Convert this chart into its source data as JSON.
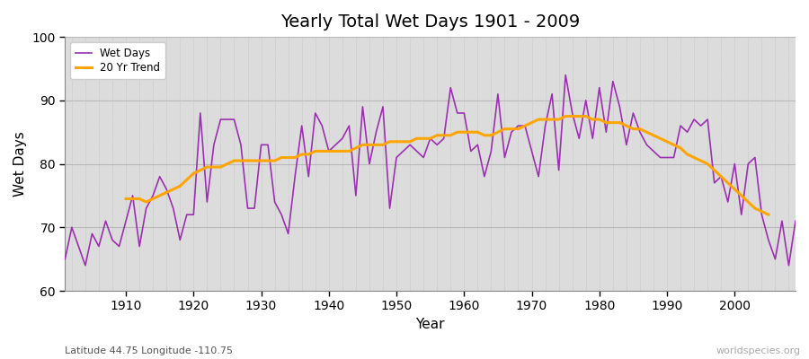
{
  "title": "Yearly Total Wet Days 1901 - 2009",
  "xlabel": "Year",
  "ylabel": "Wet Days",
  "subtitle": "Latitude 44.75 Longitude -110.75",
  "watermark": "worldspecies.org",
  "fig_bg_color": "#ffffff",
  "plot_bg_color": "#dcdcdc",
  "ylim": [
    60,
    100
  ],
  "xlim": [
    1901,
    2009
  ],
  "wet_days_color": "#9b30b0",
  "trend_color": "#FFA500",
  "years": [
    1901,
    1902,
    1903,
    1904,
    1905,
    1906,
    1907,
    1908,
    1909,
    1910,
    1911,
    1912,
    1913,
    1914,
    1915,
    1916,
    1917,
    1918,
    1919,
    1920,
    1921,
    1922,
    1923,
    1924,
    1925,
    1926,
    1927,
    1928,
    1929,
    1930,
    1931,
    1932,
    1933,
    1934,
    1935,
    1936,
    1937,
    1938,
    1939,
    1940,
    1941,
    1942,
    1943,
    1944,
    1945,
    1946,
    1947,
    1948,
    1949,
    1950,
    1951,
    1952,
    1953,
    1954,
    1955,
    1956,
    1957,
    1958,
    1959,
    1960,
    1961,
    1962,
    1963,
    1964,
    1965,
    1966,
    1967,
    1968,
    1969,
    1970,
    1971,
    1972,
    1973,
    1974,
    1975,
    1976,
    1977,
    1978,
    1979,
    1980,
    1981,
    1982,
    1983,
    1984,
    1985,
    1986,
    1987,
    1988,
    1989,
    1990,
    1991,
    1992,
    1993,
    1994,
    1995,
    1996,
    1997,
    1998,
    1999,
    2000,
    2001,
    2002,
    2003,
    2004,
    2005,
    2006,
    2007,
    2008,
    2009
  ],
  "wet_days": [
    65,
    70,
    67,
    64,
    69,
    67,
    71,
    68,
    67,
    71,
    75,
    67,
    73,
    75,
    78,
    76,
    73,
    68,
    72,
    72,
    88,
    74,
    83,
    87,
    87,
    87,
    83,
    73,
    73,
    83,
    83,
    74,
    72,
    69,
    78,
    86,
    78,
    88,
    86,
    82,
    83,
    84,
    86,
    75,
    89,
    80,
    85,
    89,
    73,
    81,
    82,
    83,
    82,
    81,
    84,
    83,
    84,
    92,
    88,
    88,
    82,
    83,
    78,
    82,
    91,
    81,
    85,
    86,
    86,
    82,
    78,
    86,
    91,
    79,
    94,
    88,
    84,
    90,
    84,
    92,
    85,
    93,
    89,
    83,
    88,
    85,
    83,
    82,
    81,
    81,
    81,
    86,
    85,
    87,
    86,
    87,
    77,
    78,
    74,
    80,
    72,
    80,
    81,
    72,
    68,
    65,
    71,
    64,
    71
  ],
  "trend_years": [
    1910,
    1911,
    1912,
    1913,
    1914,
    1915,
    1916,
    1917,
    1918,
    1919,
    1920,
    1921,
    1922,
    1923,
    1924,
    1925,
    1926,
    1927,
    1928,
    1929,
    1930,
    1931,
    1932,
    1933,
    1934,
    1935,
    1936,
    1937,
    1938,
    1939,
    1940,
    1941,
    1942,
    1943,
    1944,
    1945,
    1946,
    1947,
    1948,
    1949,
    1950,
    1951,
    1952,
    1953,
    1954,
    1955,
    1956,
    1957,
    1958,
    1959,
    1960,
    1961,
    1962,
    1963,
    1964,
    1965,
    1966,
    1967,
    1968,
    1969,
    1970,
    1971,
    1972,
    1973,
    1974,
    1975,
    1976,
    1977,
    1978,
    1979,
    1980,
    1981,
    1982,
    1983,
    1984,
    1985,
    1986,
    1987,
    1988,
    1989,
    1990,
    1991,
    1992,
    1993,
    1994,
    1995,
    1996,
    1997,
    1998,
    1999,
    2000,
    2001,
    2002,
    2003,
    2004,
    2005
  ],
  "trend_values": [
    74.5,
    74.5,
    74.5,
    74.0,
    74.5,
    75.0,
    75.5,
    76.0,
    76.5,
    77.5,
    78.5,
    79.0,
    79.5,
    79.5,
    79.5,
    80.0,
    80.5,
    80.5,
    80.5,
    80.5,
    80.5,
    80.5,
    80.5,
    81.0,
    81.0,
    81.0,
    81.5,
    81.5,
    82.0,
    82.0,
    82.0,
    82.0,
    82.0,
    82.0,
    82.5,
    83.0,
    83.0,
    83.0,
    83.0,
    83.5,
    83.5,
    83.5,
    83.5,
    84.0,
    84.0,
    84.0,
    84.5,
    84.5,
    84.5,
    85.0,
    85.0,
    85.0,
    85.0,
    84.5,
    84.5,
    85.0,
    85.5,
    85.5,
    85.5,
    86.0,
    86.5,
    87.0,
    87.0,
    87.0,
    87.0,
    87.5,
    87.5,
    87.5,
    87.5,
    87.0,
    87.0,
    86.5,
    86.5,
    86.5,
    86.0,
    85.5,
    85.5,
    85.0,
    84.5,
    84.0,
    83.5,
    83.0,
    82.5,
    81.5,
    81.0,
    80.5,
    80.0,
    79.0,
    78.0,
    77.0,
    76.0,
    75.0,
    74.0,
    73.0,
    72.5,
    72.0
  ]
}
